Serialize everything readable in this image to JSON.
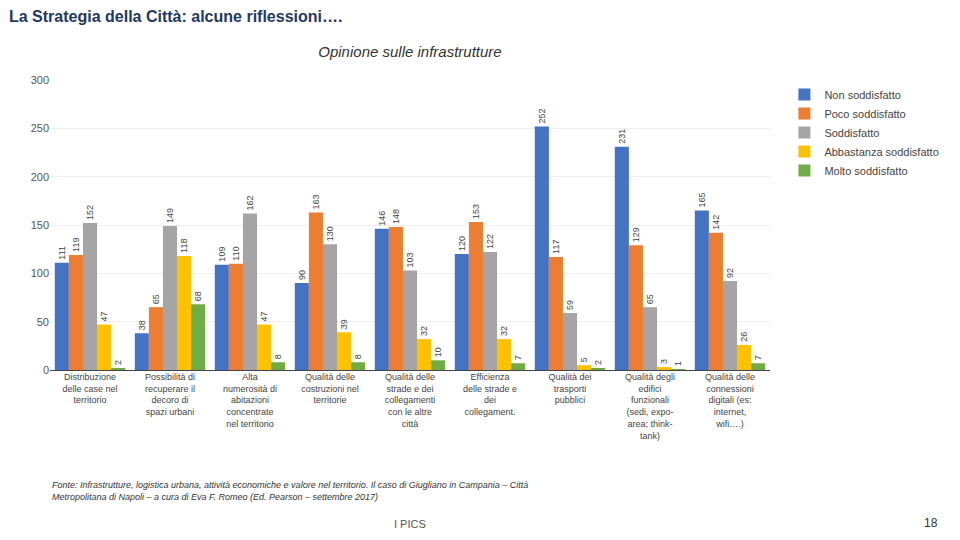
{
  "chart_data": {
    "type": "bar",
    "title": "Opinione sulle infrastrutture",
    "annotations": [
      "La Strategia della Città: alcune riflessioni….",
      "Fonte: Infrastrutture, logistica urbana, attività economiche e valore nel territorio. Il caso di Giugliano in Campania – Città\nMetropolitana di Napoli – a cura di Eva F. Romeo (Ed. Pearson – settembre 2017)",
      "I PICS",
      "18"
    ],
    "categories": [
      "Distribuzione\ndelle case nel\nterritorio",
      "Possibilità di\nrecuperare il\ndecoro di\nspazi urbani",
      "Alta\nnumerosità di\nabitazioni\nconcentrate\nnel territorio",
      "Qualità delle\ncostruzioni nel\nterritorie",
      "Qualità delle\nstrade e dei\ncollegamenti\ncon le altre\ncittà",
      "Efficienza\ndelle strade e\ndei\ncollegament.",
      "Qualità dei\ntrasporti\npubblici",
      "Qualità degli\nedifici\nfunzionali\n(sedi, expo-\narea; think-\ntank)",
      "Qualità delle\nconnessioni\ndigitali (es:\ninternet,\nwifi….)"
    ],
    "series": [
      {
        "name": "Non soddisfatto",
        "color": "#4472C4",
        "values": [
          111,
          38,
          109,
          90,
          146,
          120,
          252,
          231,
          165
        ]
      },
      {
        "name": "Poco soddisfatto",
        "color": "#ED7D31",
        "values": [
          119,
          65,
          110,
          163,
          148,
          153,
          117,
          129,
          142
        ]
      },
      {
        "name": "Soddisfatto",
        "color": "#A5A5A5",
        "values": [
          152,
          149,
          162,
          130,
          103,
          122,
          59,
          65,
          92
        ]
      },
      {
        "name": "Abbastanza soddisfatto",
        "color": "#FFC000",
        "values": [
          47,
          118,
          47,
          39,
          32,
          32,
          5,
          3,
          26
        ]
      },
      {
        "name": "Molto soddisfatto",
        "color": "#70AD47",
        "values": [
          2,
          68,
          8,
          8,
          10,
          7,
          2,
          1,
          7
        ]
      }
    ],
    "ylim": [
      0,
      300
    ],
    "yticks": [
      0,
      50,
      100,
      150,
      200,
      250,
      300
    ],
    "grid": true,
    "legend": "right",
    "data_labels": true
  }
}
